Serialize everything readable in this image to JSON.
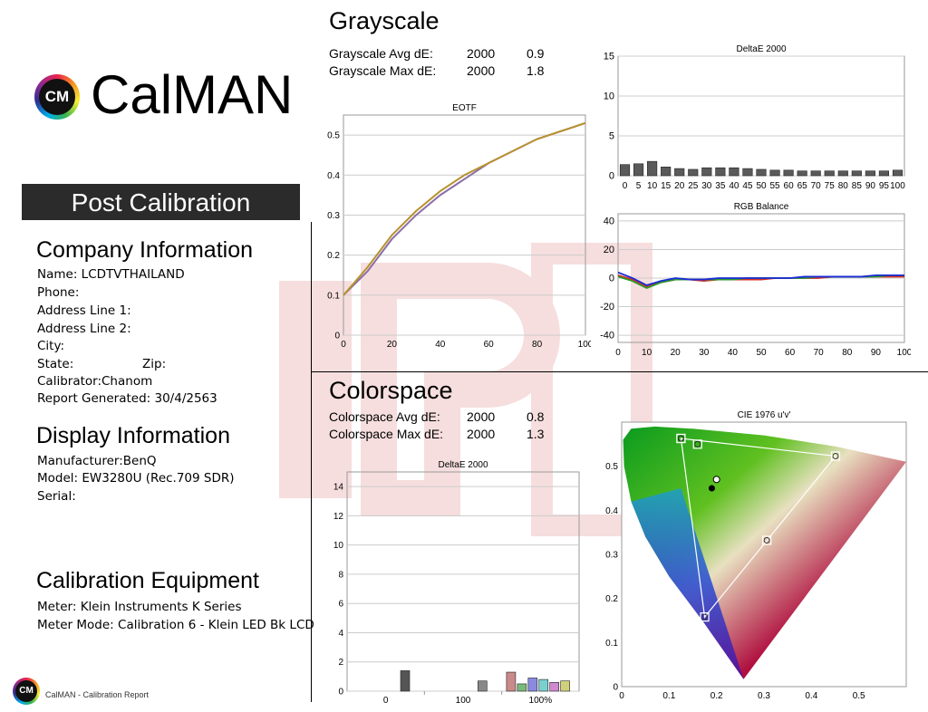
{
  "brand": {
    "logo_mark": "CM",
    "logo_text": "CalMAN",
    "banner": "Post Calibration",
    "footer": "CalMAN - Calibration Report"
  },
  "company": {
    "heading": "Company Information",
    "name": "Name: LCDTVTHAILAND",
    "phone": "Phone:",
    "address1": "Address Line 1:",
    "address2": "Address Line 2:",
    "city": "City:",
    "state": "State:",
    "zip": "Zip:",
    "calibrator": "Calibrator:Chanom",
    "report": "Report Generated: 30/4/2563"
  },
  "display": {
    "heading": "Display Information",
    "manufacturer": "Manufacturer:BenQ",
    "model": "Model: EW3280U (Rec.709 SDR)",
    "serial": "Serial:"
  },
  "equipment": {
    "heading": "Calibration Equipment",
    "meter": "Meter: Klein Instruments K Series",
    "mode": "Meter Mode: Calibration 6 - Klein LED Bk LCD"
  },
  "grayscale": {
    "heading": "Grayscale",
    "avg_label": "Grayscale Avg dE:",
    "avg_std": "2000",
    "avg_val": "0.9",
    "max_label": "Grayscale Max dE:",
    "max_std": "2000",
    "max_val": "1.8"
  },
  "colorspace": {
    "heading": "Colorspace",
    "avg_label": "Colorspace Avg dE:",
    "avg_std": "2000",
    "avg_val": "0.8",
    "max_label": "Colorspace Max dE:",
    "max_std": "2000",
    "max_val": "1.3"
  },
  "chart_data": [
    {
      "type": "line",
      "title": "EOTF",
      "x": [
        0,
        10,
        20,
        30,
        40,
        50,
        60,
        70,
        80,
        90,
        100
      ],
      "series": [
        {
          "values": [
            0.1,
            0.17,
            0.25,
            0.31,
            0.36,
            0.4,
            0.43,
            0.46,
            0.49,
            0.51,
            0.53
          ],
          "color": "#b8922e"
        },
        {
          "values": [
            0.1,
            0.16,
            0.24,
            0.3,
            0.35,
            0.39,
            0.43,
            0.46,
            0.49,
            0.51,
            0.53
          ],
          "color": "#8a6fa8"
        }
      ],
      "xlim": [
        0,
        100
      ],
      "ylim": [
        0,
        0.55
      ],
      "yticks": [
        0,
        0.1,
        0.2,
        0.3,
        0.4,
        0.5
      ],
      "xticks": [
        0,
        20,
        40,
        60,
        80,
        100
      ],
      "grid": true
    },
    {
      "type": "bar",
      "title": "DeltaE 2000",
      "categories": [
        "0",
        "5",
        "10",
        "15",
        "20",
        "25",
        "30",
        "35",
        "40",
        "45",
        "50",
        "55",
        "60",
        "65",
        "70",
        "75",
        "80",
        "85",
        "90",
        "95",
        "100"
      ],
      "values": [
        1.4,
        1.5,
        1.8,
        1.1,
        0.9,
        0.8,
        1.0,
        1.0,
        1.0,
        0.9,
        0.8,
        0.7,
        0.7,
        0.6,
        0.6,
        0.6,
        0.6,
        0.6,
        0.6,
        0.6,
        0.7
      ],
      "ylim": [
        0,
        15
      ],
      "yticks": [
        0,
        5,
        10,
        15
      ],
      "grid": true
    },
    {
      "type": "line",
      "title": "RGB Balance",
      "x": [
        0,
        5,
        10,
        15,
        20,
        25,
        30,
        35,
        40,
        45,
        50,
        55,
        60,
        65,
        70,
        75,
        80,
        85,
        90,
        95,
        100
      ],
      "series": [
        {
          "values": [
            2,
            -1,
            -6,
            -3,
            -1,
            -1,
            -2,
            -1,
            -1,
            -1,
            -1,
            0,
            0,
            0,
            0,
            1,
            1,
            1,
            1,
            1,
            1
          ],
          "color": "#d83020"
        },
        {
          "values": [
            1,
            -2,
            -7,
            -3,
            -1,
            -1,
            -1,
            -1,
            -1,
            0,
            0,
            0,
            0,
            0,
            1,
            1,
            1,
            1,
            1,
            2,
            2
          ],
          "color": "#2a9a2a"
        },
        {
          "values": [
            4,
            0,
            -5,
            -2,
            0,
            -1,
            -1,
            0,
            0,
            0,
            0,
            0,
            0,
            1,
            1,
            1,
            1,
            1,
            2,
            2,
            2
          ],
          "color": "#1a2ad8"
        }
      ],
      "xlim": [
        0,
        100
      ],
      "ylim": [
        -45,
        45
      ],
      "yticks": [
        -40,
        -20,
        0,
        20,
        40
      ],
      "xticks": [
        0,
        10,
        20,
        30,
        40,
        50,
        60,
        70,
        80,
        90,
        100
      ],
      "grid": true
    },
    {
      "type": "bar",
      "title": "DeltaE 2000",
      "group_labels": [
        "0",
        "100",
        "100%"
      ],
      "values": [
        1.4,
        0.7,
        1.3,
        0.5,
        0.9,
        0.8,
        0.6,
        0.7
      ],
      "colors": [
        "#555555",
        "#888888",
        "#c98a8a",
        "#7ab97a",
        "#8a8ae0",
        "#7ad0d0",
        "#d08ad0",
        "#d0d07a"
      ],
      "ylim": [
        0,
        15
      ],
      "yticks": [
        0,
        2,
        4,
        6,
        8,
        10,
        12,
        14
      ],
      "grid": true
    },
    {
      "type": "scatter",
      "title": "CIE 1976 u'v'",
      "targets": [
        [
          0.451,
          0.523
        ],
        [
          0.125,
          0.563
        ],
        [
          0.175,
          0.158
        ],
        [
          0.198,
          0.468
        ],
        [
          0.125,
          0.563
        ],
        [
          0.16,
          0.55
        ],
        [
          0.306,
          0.332
        ]
      ],
      "measured": [
        [
          0.198,
          0.46
        ]
      ],
      "xlim": [
        0,
        0.6
      ],
      "ylim": [
        0,
        0.6
      ],
      "xticks": [
        0,
        0.1,
        0.2,
        0.3,
        0.4,
        0.5
      ],
      "yticks": [
        0,
        0.1,
        0.2,
        0.3,
        0.4,
        0.5
      ],
      "grid": true
    }
  ]
}
